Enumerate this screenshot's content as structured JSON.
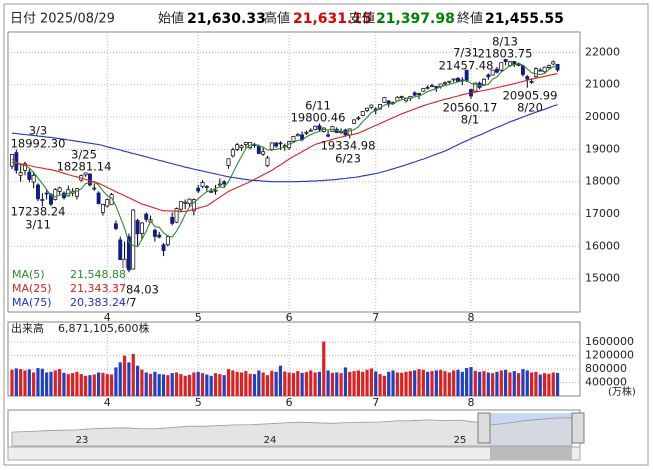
{
  "header": {
    "date_label": "日付",
    "date": "2025/08/29",
    "fields": [
      {
        "label": "始値",
        "value": "21,630.33",
        "color": "#000000"
      },
      {
        "label": "高値",
        "value": "21,631.15",
        "color": "#e00000"
      },
      {
        "label": "安値",
        "value": "21,397.98",
        "color": "#008000"
      },
      {
        "label": "終値",
        "value": "21,455.55",
        "color": "#000000"
      }
    ]
  },
  "chart_data": {
    "type": "candlestick",
    "categories": [
      null,
      null,
      null,
      null,
      null,
      null,
      null,
      null,
      null,
      null,
      null,
      null,
      null,
      null,
      null,
      null,
      null,
      null,
      null,
      null,
      null,
      null,
      "4",
      null,
      null,
      null,
      null,
      null,
      null,
      null,
      null,
      null,
      null,
      null,
      null,
      null,
      null,
      null,
      null,
      null,
      null,
      null,
      null,
      "5",
      null,
      null,
      null,
      null,
      null,
      null,
      null,
      null,
      null,
      null,
      null,
      null,
      null,
      null,
      null,
      null,
      null,
      null,
      null,
      null,
      "6",
      null,
      null,
      null,
      null,
      null,
      null,
      null,
      null,
      null,
      null,
      null,
      null,
      null,
      null,
      null,
      null,
      null,
      null,
      null,
      "7",
      null,
      null,
      null,
      null,
      null,
      null,
      null,
      null,
      null,
      null,
      null,
      null,
      null,
      null,
      null,
      null,
      null,
      null,
      null,
      null,
      null,
      "8",
      null,
      null,
      null,
      null,
      null,
      null,
      null,
      null,
      null,
      null,
      null,
      null,
      null,
      null,
      null,
      null,
      null,
      null,
      null,
      null
    ],
    "open": [
      18480,
      18900,
      18200,
      18350,
      18300,
      17990,
      17900,
      17450,
      17650,
      17600,
      17450,
      17700,
      17650,
      17560,
      17650,
      17550,
      18050,
      18210,
      18240,
      17800,
      17650,
      17050,
      17250,
      17300,
      16700,
      16200,
      15000,
      16300,
      15300,
      16800,
      16400,
      17000,
      16750,
      16500,
      16350,
      16050,
      16050,
      16900,
      16750,
      17150,
      17350,
      17320,
      17100,
      17800,
      17850,
      17850,
      17700,
      17730,
      17900,
      18000,
      18500,
      18800,
      19000,
      19050,
      19150,
      19050,
      19150,
      19100,
      18850,
      18500,
      19000,
      19200,
      19200,
      19100,
      19050,
      19250,
      19420,
      19450,
      19500,
      19580,
      19620,
      19730,
      19550,
      19450,
      19550,
      19620,
      19530,
      19600,
      19450,
      19800,
      19950,
      20050,
      20200,
      20300,
      20250,
      20250,
      20450,
      20500,
      20450,
      20500,
      20600,
      20500,
      20580,
      20750,
      20700,
      20800,
      20920,
      20950,
      20950,
      20950,
      21050,
      21080,
      21150,
      21200,
      21150,
      21450,
      20850,
      20800,
      21050,
      21000,
      21300,
      21300,
      21480,
      21450,
      21780,
      21600,
      21720,
      21600,
      21590,
      21250,
      21100,
      21250,
      21450,
      21400,
      21530,
      21640,
      21630.33
    ],
    "high": [
      18850,
      18992.3,
      18500,
      18620,
      18400,
      18300,
      17950,
      17650,
      17750,
      17650,
      17800,
      17850,
      17700,
      17880,
      17800,
      17800,
      18220,
      18281.14,
      18260,
      17950,
      17700,
      17320,
      17480,
      17650,
      16800,
      16300,
      16150,
      16400,
      17150,
      16850,
      16750,
      17050,
      16950,
      16550,
      16450,
      16100,
      16350,
      17050,
      17200,
      17400,
      17450,
      17480,
      17480,
      17900,
      18050,
      17900,
      17800,
      17900,
      18100,
      18050,
      18720,
      19050,
      19200,
      19150,
      19230,
      19230,
      19200,
      19150,
      19050,
      18800,
      19220,
      19220,
      19250,
      19180,
      19260,
      19420,
      19500,
      19550,
      19580,
      19650,
      19740,
      19800.46,
      19680,
      19580,
      19720,
      19680,
      19650,
      19640,
      19650,
      19930,
      20030,
      20180,
      20290,
      20390,
      20300,
      20400,
      20620,
      20520,
      20480,
      20650,
      20660,
      20600,
      20650,
      20800,
      20760,
      20900,
      20980,
      21030,
      20960,
      21030,
      21100,
      21120,
      21190,
      21230,
      21230,
      21457.48,
      20880,
      21060,
      21100,
      21200,
      21350,
      21460,
      21550,
      21690,
      21803.75,
      21730,
      21730,
      21690,
      21600,
      21300,
      21200,
      21540,
      21520,
      21560,
      21620,
      21750,
      21631.15
    ],
    "low": [
      18390,
      18250,
      18000,
      18200,
      17980,
      17800,
      17400,
      17238.24,
      17450,
      17250,
      17420,
      17600,
      17450,
      17540,
      17550,
      17450,
      18000,
      18150,
      17850,
      17720,
      17300,
      16950,
      17200,
      17290,
      16500,
      15580,
      14784.03,
      15200,
      15280,
      16000,
      16200,
      16750,
      16730,
      16150,
      16250,
      15700,
      16000,
      16650,
      16720,
      17050,
      17150,
      17230,
      16960,
      17650,
      17800,
      17700,
      17650,
      17600,
      17850,
      17850,
      18400,
      18750,
      18950,
      18950,
      19050,
      19000,
      19050,
      18850,
      18800,
      18450,
      18950,
      19050,
      18980,
      18950,
      18980,
      19200,
      19400,
      19250,
      19450,
      19550,
      19590,
      19550,
      19520,
      19370,
      19540,
      19500,
      19480,
      19420,
      19334.98,
      19780,
      19900,
      20030,
      20150,
      20250,
      20080,
      20230,
      20440,
      20300,
      20370,
      20480,
      20550,
      20450,
      20500,
      20650,
      20550,
      20780,
      20850,
      20920,
      20780,
      20880,
      20980,
      21040,
      21080,
      21070,
      20990,
      21080,
      20560.17,
      20780,
      20860,
      20950,
      21150,
      21280,
      21350,
      21400,
      21600,
      21550,
      21550,
      21570,
      21250,
      20905.99,
      21030,
      21200,
      21420,
      21370,
      21490,
      21600,
      21397.98
    ],
    "close": [
      18847,
      18350,
      18285,
      18553,
      18069,
      18196,
      17468,
      17436,
      17648,
      17303,
      17754,
      17808,
      17504,
      17750,
      17692,
      17784,
      18189,
      18271,
      17899,
      17804,
      17323,
      17299,
      17449,
      17601,
      16551,
      15588,
      15603,
      15268,
      17125,
      16387,
      16724,
      16832,
      16823,
      16307,
      16286,
      15870,
      16300,
      16708,
      17166,
      17383,
      17366,
      17461,
      17446,
      17711,
      17978,
      17844,
      17690,
      17738,
      17928,
      17929,
      18708,
      18986,
      19146,
      19112,
      19211,
      19215,
      19143,
      18872,
      18925,
      18737,
      19199,
      19101,
      19175,
      19114,
      19243,
      19399,
      19460,
      19298,
      19530,
      19591,
      19715,
      19615,
      19662,
      19406,
      19701,
      19521,
      19546,
      19447,
      19631,
      19913,
      19973,
      20168,
      20273,
      20370,
      20202,
      20393,
      20601,
      20412,
      20418,
      20611,
      20630,
      20586,
      20640,
      20677,
      20730,
      20885,
      20896,
      20974,
      20892,
      21020,
      21058,
      21108,
      21179,
      21098,
      21130,
      21122,
      20650,
      21053,
      20916,
      21169,
      21243,
      21450,
      21385,
      21681,
      21713,
      21710,
      21623,
      21629,
      21315,
      21172,
      21100,
      21497,
      21449,
      21544,
      21590,
      21705,
      21455.55
    ],
    "colors": {
      "up": "#ffffff",
      "down": "#101c8a",
      "wick": "#000000",
      "volume_up": "#e02020",
      "volume_down": "#2040c0"
    },
    "ylim": [
      13970,
      22630
    ],
    "yticks": [
      15000,
      16000,
      17000,
      18000,
      19000,
      20000,
      21000,
      22000
    ],
    "grid": true,
    "series": [
      {
        "name": "MA(5)",
        "color": "#2e8b2e",
        "latest": "21,548.88",
        "values": [
          18700,
          18600,
          18520,
          18500,
          18420,
          18290,
          18110,
          17940,
          17760,
          17570,
          17530,
          17590,
          17600,
          17630,
          17700,
          17710,
          17780,
          17940,
          17970,
          17990,
          17900,
          17720,
          17560,
          17500,
          17250,
          16900,
          16560,
          16120,
          16030,
          15990,
          16220,
          16470,
          16780,
          16610,
          16590,
          16420,
          16320,
          16290,
          16470,
          16710,
          16990,
          17220,
          17360,
          17470,
          17590,
          17690,
          17730,
          17790,
          17840,
          17820,
          18000,
          18260,
          18540,
          18780,
          19030,
          19130,
          19170,
          19110,
          19070,
          18980,
          18990,
          19000,
          19030,
          19070,
          19170,
          19210,
          19280,
          19290,
          19390,
          19460,
          19520,
          19550,
          19620,
          19600,
          19620,
          19580,
          19560,
          19540,
          19570,
          19610,
          19700,
          19860,
          19990,
          20140,
          20200,
          20280,
          20370,
          20400,
          20410,
          20490,
          20530,
          20570,
          20580,
          20630,
          20650,
          20710,
          20790,
          20830,
          20880,
          20940,
          20970,
          21010,
          21050,
          21090,
          21110,
          21130,
          21040,
          21010,
          20970,
          20980,
          21010,
          21170,
          21240,
          21390,
          21490,
          21590,
          21620,
          21670,
          21600,
          21490,
          21370,
          21340,
          21310,
          21350,
          21470,
          21560,
          21548.88
        ]
      },
      {
        "name": "MA(25)",
        "color": "#e02020",
        "latest": "21,343.37",
        "values": [
          18600,
          18570,
          18550,
          18520,
          18500,
          18470,
          18440,
          18420,
          18390,
          18370,
          18340,
          18300,
          18260,
          18220,
          18180,
          18150,
          18110,
          18070,
          18030,
          17990,
          17950,
          17890,
          17820,
          17760,
          17690,
          17630,
          17570,
          17500,
          17440,
          17370,
          17310,
          17270,
          17230,
          17180,
          17140,
          17100,
          17100,
          17090,
          17090,
          17080,
          17080,
          17110,
          17150,
          17180,
          17220,
          17250,
          17340,
          17430,
          17520,
          17610,
          17700,
          17760,
          17820,
          17880,
          17940,
          18000,
          18070,
          18140,
          18210,
          18280,
          18350,
          18440,
          18520,
          18610,
          18700,
          18780,
          18850,
          18930,
          19000,
          19080,
          19150,
          19190,
          19230,
          19270,
          19310,
          19350,
          19380,
          19410,
          19440,
          19470,
          19500,
          19560,
          19620,
          19680,
          19740,
          19800,
          19860,
          19920,
          19980,
          20040,
          20100,
          20150,
          20200,
          20250,
          20300,
          20350,
          20390,
          20430,
          20470,
          20510,
          20550,
          20580,
          20620,
          20650,
          20690,
          20720,
          20750,
          20770,
          20800,
          20820,
          20850,
          20880,
          20910,
          20940,
          20970,
          21000,
          21030,
          21070,
          21100,
          21140,
          21170,
          21200,
          21230,
          21260,
          21290,
          21320,
          21343.37
        ]
      },
      {
        "name": "MA(75)",
        "color": "#2030d0",
        "latest": "20,383.24",
        "values": [
          19500,
          19490,
          19470,
          19460,
          19440,
          19430,
          19410,
          19400,
          19380,
          19370,
          19350,
          19330,
          19310,
          19290,
          19270,
          19250,
          19230,
          19210,
          19190,
          19170,
          19150,
          19120,
          19080,
          19050,
          19010,
          18980,
          18940,
          18910,
          18870,
          18840,
          18800,
          18770,
          18730,
          18700,
          18660,
          18630,
          18590,
          18560,
          18520,
          18490,
          18450,
          18420,
          18390,
          18360,
          18330,
          18300,
          18270,
          18240,
          18210,
          18180,
          18150,
          18130,
          18110,
          18090,
          18070,
          18050,
          18040,
          18030,
          18020,
          18010,
          18000,
          18000,
          18000,
          18000,
          18000,
          18000,
          18000,
          18010,
          18010,
          18020,
          18020,
          18030,
          18040,
          18050,
          18060,
          18070,
          18090,
          18100,
          18120,
          18130,
          18150,
          18180,
          18200,
          18230,
          18250,
          18280,
          18320,
          18360,
          18400,
          18440,
          18480,
          18520,
          18570,
          18610,
          18660,
          18700,
          18750,
          18800,
          18850,
          18900,
          18950,
          19010,
          19080,
          19140,
          19210,
          19270,
          19330,
          19390,
          19440,
          19500,
          19560,
          19620,
          19680,
          19730,
          19790,
          19850,
          19900,
          19950,
          20000,
          20050,
          20100,
          20150,
          20200,
          20240,
          20290,
          20340,
          20383.24
        ]
      }
    ],
    "annotations": [
      {
        "date": "3/3",
        "price": "18992.30"
      },
      {
        "date": "3/25",
        "price": "18281.14"
      },
      {
        "date": "3/11",
        "price": "17238.24"
      },
      {
        "date": "4/7",
        "price": "14784.03"
      },
      {
        "date": "6/11",
        "price": "19800.46"
      },
      {
        "date": "6/23",
        "price": "19334.98"
      },
      {
        "date": "7/31",
        "price": "21457.48"
      },
      {
        "date": "8/13",
        "price": "21803.75"
      },
      {
        "date": "8/1",
        "price": "20560.17"
      },
      {
        "date": "8/20",
        "price": "20905.99"
      }
    ],
    "volume": {
      "label": "出来高",
      "latest": "6,871,105,600株",
      "unit": "(万株)",
      "ylim": [
        0,
        2200000
      ],
      "yticks": [
        400000,
        800000,
        1200000,
        1600000
      ],
      "values": [
        780000,
        820000,
        800000,
        760000,
        790000,
        700000,
        830000,
        810000,
        700000,
        720000,
        760000,
        800000,
        690000,
        650000,
        680000,
        720000,
        650000,
        600000,
        620000,
        640000,
        700000,
        690000,
        650000,
        640000,
        850000,
        1000000,
        1200000,
        1000000,
        1250000,
        900000,
        780000,
        700000,
        660000,
        720000,
        650000,
        640000,
        620000,
        680000,
        700000,
        650000,
        600000,
        630000,
        700000,
        720000,
        680000,
        640000,
        600000,
        680000,
        650000,
        620000,
        800000,
        760000,
        720000,
        700000,
        740000,
        660000,
        650000,
        760000,
        700000,
        620000,
        750000,
        720000,
        900000,
        730000,
        700000,
        680000,
        740000,
        690000,
        710000,
        760000,
        700000,
        720000,
        1620000,
        760000,
        690000,
        700000,
        680000,
        850000,
        720000,
        740000,
        760000,
        720000,
        780000,
        820000,
        730000,
        650000,
        600000,
        720000,
        760000,
        700000,
        690000,
        720000,
        740000,
        760000,
        800000,
        780000,
        720000,
        740000,
        760000,
        780000,
        740000,
        700000,
        760000,
        780000,
        720000,
        830000,
        860000,
        750000,
        720000,
        740000,
        700000,
        680000,
        720000,
        760000,
        780000,
        700000,
        740000,
        680000,
        800000,
        760000,
        700000,
        720000,
        640000,
        680000,
        660000,
        700000,
        687110.56
      ]
    }
  },
  "navigator": {
    "labels": [
      "23",
      "24",
      "25"
    ],
    "ylim": [
      0,
      25000
    ],
    "values": [
      10500,
      11000,
      11500,
      12000,
      12200,
      13000,
      13500,
      13800,
      13200,
      13000,
      14000,
      15000,
      15000,
      15500,
      16000,
      16200,
      16800,
      17500,
      18000,
      17600,
      17200,
      17700,
      18000,
      18200,
      19000,
      19200,
      19800,
      19300,
      19600,
      18000,
      16000,
      17400,
      19100,
      20200,
      21100,
      21455.55
    ]
  }
}
